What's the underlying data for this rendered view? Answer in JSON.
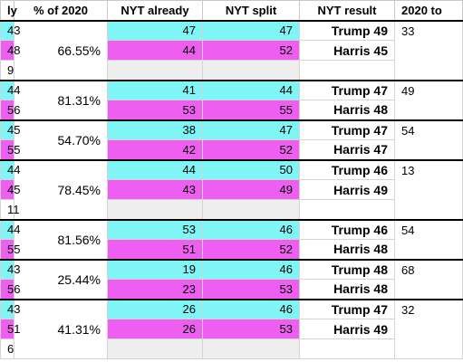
{
  "headers": [
    "ly",
    "% of 2020",
    "NYT already",
    "NYT split",
    "NYT result",
    "2020 to"
  ],
  "colors": {
    "trump": "#7ff5f5",
    "harris": "#ee5ef0",
    "empty": "#eeeeee"
  },
  "groups": [
    {
      "pct": "66.55%",
      "third_row_value": "9",
      "trump": {
        "early": "43",
        "already": "47",
        "split": "47",
        "result": "Trump 49",
        "to2020": "33"
      },
      "harris": {
        "early": "48",
        "already": "44",
        "split": "52",
        "result": "Harris 45",
        "to2020": ""
      }
    },
    {
      "pct": "81.31%",
      "third_row_value": "",
      "trump": {
        "early": "44",
        "already": "41",
        "split": "44",
        "result": "Trump 47",
        "to2020": "49"
      },
      "harris": {
        "early": "56",
        "already": "53",
        "split": "55",
        "result": "Harris 48",
        "to2020": ""
      }
    },
    {
      "pct": "54.70%",
      "third_row_value": "",
      "trump": {
        "early": "45",
        "already": "38",
        "split": "47",
        "result": "Trump 47",
        "to2020": "54"
      },
      "harris": {
        "early": "55",
        "already": "42",
        "split": "52",
        "result": "Harris 47",
        "to2020": ""
      }
    },
    {
      "pct": "78.45%",
      "third_row_value": "11",
      "trump": {
        "early": "44",
        "already": "44",
        "split": "50",
        "result": "Trump 46",
        "to2020": "13"
      },
      "harris": {
        "early": "45",
        "already": "43",
        "split": "49",
        "result": "Harris 49",
        "to2020": ""
      }
    },
    {
      "pct": "81.56%",
      "third_row_value": "",
      "trump": {
        "early": "44",
        "already": "53",
        "split": "46",
        "result": "Trump 46",
        "to2020": "54"
      },
      "harris": {
        "early": "55",
        "already": "51",
        "split": "52",
        "result": "Harris 48",
        "to2020": ""
      }
    },
    {
      "pct": "25.44%",
      "third_row_value": "",
      "trump": {
        "early": "43",
        "already": "19",
        "split": "46",
        "result": "Trump 48",
        "to2020": "68"
      },
      "harris": {
        "early": "56",
        "already": "23",
        "split": "53",
        "result": "Harris 48",
        "to2020": ""
      }
    },
    {
      "pct": "41.31%",
      "third_row_value": "6",
      "trump": {
        "early": "43",
        "already": "26",
        "split": "46",
        "result": "Trump 47",
        "to2020": "32"
      },
      "harris": {
        "early": "51",
        "already": "26",
        "split": "53",
        "result": "Harris 49",
        "to2020": ""
      }
    }
  ]
}
